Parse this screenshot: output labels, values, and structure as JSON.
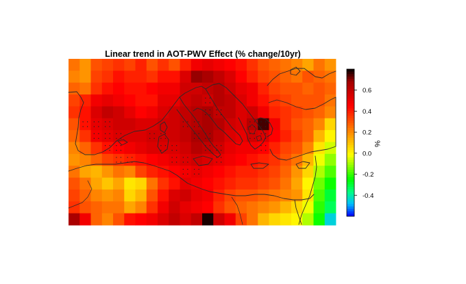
{
  "title": "Linear trend in AOT-PWV Effect (% change/10yr)",
  "colorbar": {
    "unit_label": "%",
    "range": [
      -0.6,
      0.8
    ],
    "ticks": [
      {
        "value": 0.6,
        "label": "0.6"
      },
      {
        "value": 0.4,
        "label": "0.4"
      },
      {
        "value": 0.2,
        "label": "0.2"
      },
      {
        "value": 0.0,
        "label": "0.0"
      },
      {
        "value": -0.2,
        "label": "-0.2"
      },
      {
        "value": -0.4,
        "label": "-0.4"
      }
    ],
    "palette": [
      "#0000ff",
      "#00bfff",
      "#00ff80",
      "#00ff00",
      "#80ff00",
      "#ffff00",
      "#ffc000",
      "#ff8000",
      "#ff4000",
      "#ff0000",
      "#d00000",
      "#a00000",
      "#000000"
    ]
  },
  "map": {
    "region": "Mediterranean",
    "grid_rows": 14,
    "grid_cols": 24,
    "values": [
      [
        0.24,
        0.18,
        0.3,
        0.33,
        0.36,
        0.33,
        0.39,
        0.3,
        0.36,
        0.3,
        0.39,
        0.48,
        0.51,
        0.48,
        0.45,
        0.42,
        0.36,
        0.3,
        0.27,
        0.24,
        0.21,
        0.15,
        0.24,
        0.18
      ],
      [
        0.21,
        0.18,
        0.33,
        0.36,
        0.42,
        0.39,
        0.39,
        0.36,
        0.42,
        0.42,
        0.54,
        0.69,
        0.66,
        0.6,
        0.54,
        0.45,
        0.39,
        0.33,
        0.3,
        0.27,
        0.24,
        0.3,
        0.27,
        0.24
      ],
      [
        0.27,
        0.24,
        0.36,
        0.42,
        0.45,
        0.42,
        0.42,
        0.45,
        0.48,
        0.48,
        0.57,
        0.57,
        0.6,
        0.63,
        0.57,
        0.51,
        0.48,
        0.39,
        0.33,
        0.3,
        0.3,
        0.27,
        0.3,
        0.27
      ],
      [
        0.33,
        0.39,
        0.48,
        0.51,
        0.48,
        0.45,
        0.42,
        0.42,
        0.51,
        0.51,
        0.57,
        0.6,
        0.57,
        0.63,
        0.6,
        0.54,
        0.48,
        0.42,
        0.36,
        0.33,
        0.3,
        0.3,
        0.3,
        0.24
      ],
      [
        0.36,
        0.42,
        0.54,
        0.6,
        0.57,
        0.51,
        0.45,
        0.48,
        0.54,
        0.57,
        0.6,
        0.63,
        0.66,
        0.6,
        0.6,
        0.54,
        0.57,
        0.48,
        0.39,
        0.36,
        0.33,
        0.3,
        0.27,
        0.21
      ],
      [
        0.3,
        0.42,
        0.51,
        0.54,
        0.57,
        0.57,
        0.54,
        0.54,
        0.57,
        0.57,
        0.6,
        0.63,
        0.66,
        0.63,
        0.57,
        0.54,
        0.63,
        0.75,
        0.48,
        0.36,
        0.3,
        0.27,
        0.21,
        0.06
      ],
      [
        0.27,
        0.36,
        0.48,
        0.51,
        0.54,
        0.54,
        0.54,
        0.57,
        0.57,
        0.57,
        0.6,
        0.66,
        0.66,
        0.6,
        0.54,
        0.51,
        0.57,
        0.54,
        0.45,
        0.39,
        0.33,
        0.27,
        0.12,
        0.0
      ],
      [
        0.21,
        0.27,
        0.36,
        0.42,
        0.45,
        0.48,
        0.51,
        0.54,
        0.54,
        0.54,
        0.57,
        0.63,
        0.6,
        0.57,
        0.51,
        0.48,
        0.48,
        0.45,
        0.39,
        0.33,
        0.3,
        0.21,
        0.03,
        -0.06
      ],
      [
        0.18,
        0.21,
        0.27,
        0.33,
        0.36,
        0.39,
        0.42,
        0.45,
        0.48,
        0.51,
        0.54,
        0.57,
        0.54,
        0.51,
        0.48,
        0.45,
        0.42,
        0.39,
        0.36,
        0.3,
        0.24,
        0.12,
        -0.03,
        -0.12
      ],
      [
        0.24,
        0.15,
        0.12,
        0.18,
        0.24,
        0.21,
        0.33,
        0.39,
        0.42,
        0.45,
        0.48,
        0.51,
        0.48,
        0.45,
        0.42,
        0.39,
        0.39,
        0.36,
        0.33,
        0.27,
        0.18,
        0.06,
        -0.09,
        -0.18
      ],
      [
        0.3,
        0.24,
        0.15,
        0.09,
        0.15,
        0.03,
        0.06,
        0.24,
        0.36,
        0.42,
        0.51,
        0.48,
        0.45,
        0.42,
        0.39,
        0.36,
        0.36,
        0.33,
        0.3,
        0.24,
        0.15,
        0.0,
        -0.15,
        -0.24
      ],
      [
        0.33,
        0.27,
        0.21,
        0.18,
        0.21,
        0.06,
        0.12,
        0.3,
        0.42,
        0.54,
        0.57,
        0.51,
        0.48,
        0.39,
        0.33,
        0.3,
        0.3,
        0.27,
        0.24,
        0.21,
        0.18,
        0.03,
        -0.18,
        -0.3
      ],
      [
        0.36,
        0.3,
        0.27,
        0.24,
        0.24,
        0.15,
        0.21,
        0.36,
        0.48,
        0.57,
        0.51,
        0.48,
        0.45,
        0.36,
        0.3,
        0.27,
        0.24,
        0.21,
        0.18,
        0.12,
        0.06,
        -0.03,
        -0.21,
        -0.33
      ],
      [
        0.66,
        0.48,
        0.27,
        0.21,
        0.3,
        0.42,
        0.45,
        0.48,
        0.54,
        0.6,
        0.54,
        0.6,
        0.78,
        0.57,
        0.48,
        0.33,
        0.24,
        0.12,
        0.06,
        0.03,
        0.0,
        -0.09,
        -0.24,
        -0.45
      ]
    ],
    "significant_cells": [
      [
        5,
        1
      ],
      [
        5,
        2
      ],
      [
        5,
        3
      ],
      [
        6,
        2
      ],
      [
        6,
        3
      ],
      [
        6,
        4
      ],
      [
        7,
        3
      ],
      [
        7,
        4
      ],
      [
        8,
        4
      ],
      [
        8,
        5
      ],
      [
        6,
        7
      ],
      [
        6,
        8
      ],
      [
        7,
        8
      ],
      [
        7,
        9
      ],
      [
        8,
        9
      ],
      [
        8,
        10
      ],
      [
        9,
        10
      ],
      [
        9,
        11
      ],
      [
        5,
        10
      ],
      [
        5,
        11
      ],
      [
        6,
        11
      ],
      [
        6,
        12
      ],
      [
        7,
        12
      ],
      [
        7,
        13
      ],
      [
        8,
        13
      ],
      [
        5,
        16
      ],
      [
        5,
        17
      ],
      [
        6,
        16
      ],
      [
        6,
        17
      ],
      [
        7,
        17
      ],
      [
        4,
        12
      ],
      [
        4,
        13
      ],
      [
        3,
        12
      ]
    ]
  }
}
